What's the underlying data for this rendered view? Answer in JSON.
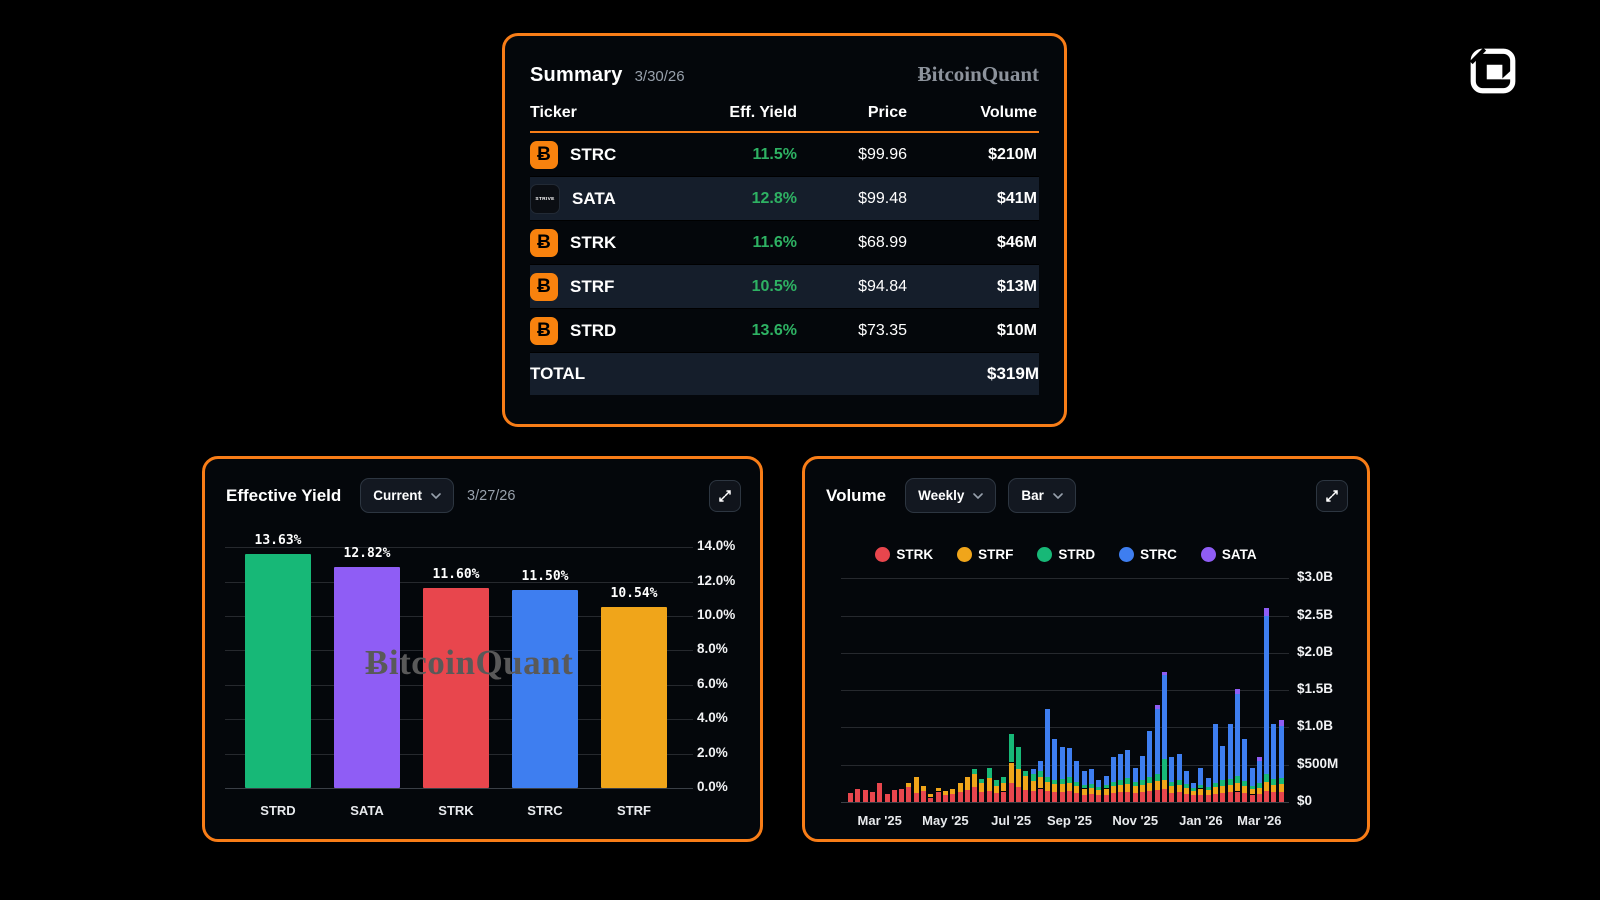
{
  "app": {
    "brand": "BitcoinQuant",
    "brand_display": "ɃitcoinQuant"
  },
  "colors": {
    "accent_orange": "#f87d17",
    "panel_bg": "#04070b",
    "row_alt_bg": "#151e2b",
    "green_text": "#2eb263",
    "series": {
      "STRK": "#e8464d",
      "STRF": "#f0a51a",
      "STRD": "#17b877",
      "STRC": "#3e7ef0",
      "SATA": "#8f5df5"
    }
  },
  "summary": {
    "title": "Summary",
    "date": "3/30/26",
    "brand": "ɃitcoinQuant",
    "columns": [
      "Ticker",
      "Eff. Yield",
      "Price",
      "Volume"
    ],
    "rows": [
      {
        "ticker": "STRC",
        "icon": "bitcoin-icon",
        "icon_glyph": "Ƀ",
        "yield": "11.5%",
        "price": "$99.96",
        "volume": "$210M"
      },
      {
        "ticker": "SATA",
        "icon": "strive-icon",
        "icon_text": "STRIVE",
        "yield": "12.8%",
        "price": "$99.48",
        "volume": "$41M"
      },
      {
        "ticker": "STRK",
        "icon": "bitcoin-icon",
        "icon_glyph": "Ƀ",
        "yield": "11.6%",
        "price": "$68.99",
        "volume": "$46M"
      },
      {
        "ticker": "STRF",
        "icon": "bitcoin-icon",
        "icon_glyph": "Ƀ",
        "yield": "10.5%",
        "price": "$94.84",
        "volume": "$13M"
      },
      {
        "ticker": "STRD",
        "icon": "bitcoin-icon",
        "icon_glyph": "Ƀ",
        "yield": "13.6%",
        "price": "$73.35",
        "volume": "$10M"
      }
    ],
    "total_label": "TOTAL",
    "total_volume": "$319M"
  },
  "yield_panel": {
    "title": "Effective Yield",
    "dropdown_value": "Current",
    "date": "3/27/26",
    "watermark": "ɃitcoinQuant"
  },
  "volume_panel": {
    "title": "Volume",
    "dropdown_period": "Weekly",
    "dropdown_type": "Bar"
  },
  "chart_data": [
    {
      "id": "effective_yield",
      "type": "bar",
      "title": "Effective Yield",
      "categories": [
        "STRD",
        "SATA",
        "STRK",
        "STRC",
        "STRF"
      ],
      "values": [
        13.63,
        12.82,
        11.6,
        11.5,
        10.54
      ],
      "value_labels": [
        "13.63%",
        "12.82%",
        "11.60%",
        "11.50%",
        "10.54%"
      ],
      "bar_colors": [
        "#17b877",
        "#8f5df5",
        "#e8464d",
        "#3e7ef0",
        "#f0a51a"
      ],
      "xlabel": "",
      "ylabel": "",
      "ylim": [
        0,
        14
      ],
      "y_ticks": [
        "0.0%",
        "2.0%",
        "4.0%",
        "6.0%",
        "8.0%",
        "10.0%",
        "12.0%",
        "14.0%"
      ],
      "y_axis_side": "right",
      "grid": true
    },
    {
      "id": "volume",
      "type": "bar",
      "subtype": "stacked",
      "title": "Volume (Weekly)",
      "unit": "$M",
      "ylim": [
        0,
        3000
      ],
      "y_ticks": [
        "$0",
        "$500M",
        "$1.0B",
        "$1.5B",
        "$2.0B",
        "$2.5B",
        "$3.0B"
      ],
      "y_axis_side": "right",
      "grid": true,
      "legend_position": "top",
      "legend": [
        "STRK",
        "STRF",
        "STRD",
        "STRC",
        "SATA"
      ],
      "x_tick_labels": [
        "Mar '25",
        "May '25",
        "Jul '25",
        "Sep '25",
        "Nov '25",
        "Jan '26",
        "Mar '26"
      ],
      "x_tick_indices": [
        4,
        13,
        22,
        30,
        39,
        48,
        56
      ],
      "series": [
        {
          "name": "STRK",
          "color": "#e8464d",
          "values": [
            125,
            175,
            165,
            130,
            250,
            110,
            165,
            175,
            200,
            120,
            150,
            60,
            140,
            90,
            110,
            140,
            160,
            200,
            130,
            150,
            120,
            140,
            250,
            200,
            160,
            150,
            180,
            150,
            130,
            140,
            150,
            120,
            100,
            110,
            90,
            100,
            120,
            130,
            140,
            120,
            130,
            150,
            160,
            170,
            120,
            130,
            110,
            90,
            100,
            90,
            110,
            120,
            130,
            140,
            120,
            100,
            110,
            150,
            130,
            140
          ]
        },
        {
          "name": "STRF",
          "color": "#f0a51a",
          "values": [
            0,
            0,
            0,
            0,
            0,
            0,
            0,
            0,
            50,
            210,
            60,
            50,
            50,
            60,
            70,
            120,
            180,
            180,
            120,
            170,
            100,
            110,
            280,
            240,
            190,
            130,
            160,
            120,
            110,
            100,
            110,
            90,
            80,
            80,
            70,
            80,
            90,
            100,
            100,
            90,
            100,
            110,
            120,
            130,
            90,
            100,
            80,
            60,
            80,
            70,
            90,
            100,
            100,
            110,
            90,
            70,
            80,
            120,
            100,
            100
          ]
        },
        {
          "name": "STRD",
          "color": "#17b877",
          "values": [
            0,
            0,
            0,
            0,
            0,
            0,
            0,
            0,
            0,
            0,
            0,
            0,
            0,
            0,
            0,
            0,
            0,
            60,
            60,
            130,
            80,
            90,
            380,
            300,
            70,
            100,
            80,
            70,
            60,
            70,
            80,
            60,
            50,
            50,
            40,
            50,
            60,
            70,
            80,
            60,
            70,
            80,
            90,
            280,
            60,
            70,
            50,
            40,
            50,
            40,
            60,
            70,
            80,
            100,
            70,
            50,
            60,
            100,
            80,
            80
          ]
        },
        {
          "name": "STRC",
          "color": "#3e7ef0",
          "values": [
            0,
            0,
            0,
            0,
            0,
            0,
            0,
            0,
            0,
            0,
            0,
            0,
            0,
            0,
            0,
            0,
            0,
            0,
            0,
            0,
            0,
            0,
            0,
            0,
            0,
            60,
            130,
            910,
            550,
            430,
            380,
            280,
            190,
            200,
            100,
            120,
            330,
            350,
            380,
            180,
            320,
            610,
            880,
            1120,
            330,
            350,
            180,
            60,
            220,
            120,
            780,
            460,
            740,
            1100,
            570,
            230,
            300,
            2120,
            740,
            700
          ]
        },
        {
          "name": "SATA",
          "color": "#8f5df5",
          "values": [
            0,
            0,
            0,
            0,
            0,
            0,
            0,
            0,
            0,
            0,
            0,
            0,
            0,
            0,
            0,
            0,
            0,
            0,
            0,
            0,
            0,
            0,
            0,
            0,
            0,
            0,
            0,
            0,
            0,
            0,
            0,
            0,
            0,
            0,
            0,
            0,
            0,
            0,
            0,
            0,
            0,
            0,
            50,
            50,
            0,
            0,
            0,
            0,
            0,
            0,
            0,
            0,
            0,
            60,
            0,
            0,
            60,
            110,
            0,
            80
          ]
        }
      ]
    }
  ]
}
